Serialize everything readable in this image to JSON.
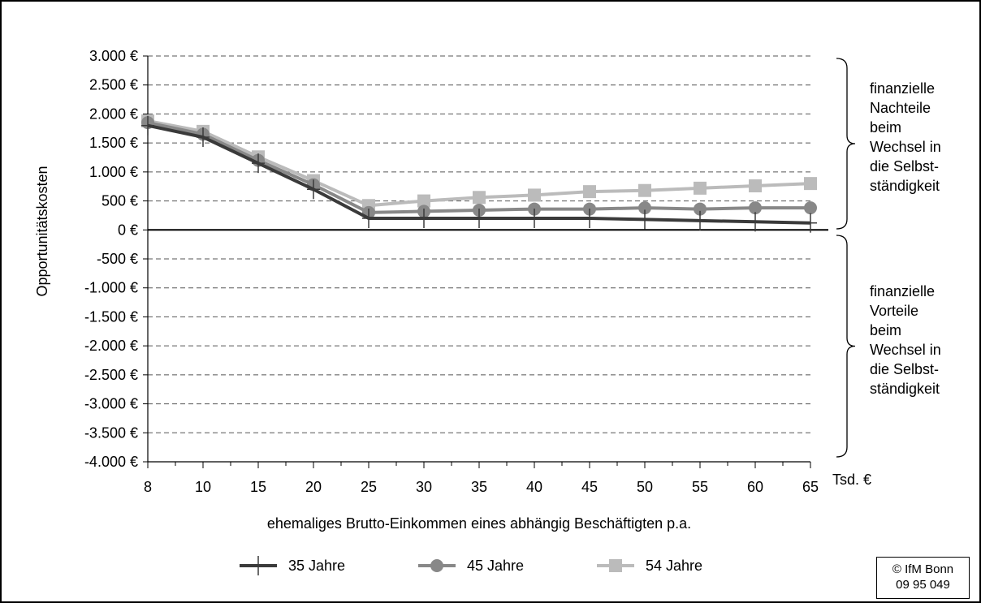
{
  "chart_data": {
    "type": "line",
    "title": "",
    "xlabel": "ehemaliges Brutto-Einkommen eines abhängig Beschäftigten p.a.",
    "x_unit_label": "Tsd. €",
    "ylabel": "Opportunitätskosten",
    "categories": [
      "8",
      "10",
      "15",
      "20",
      "25",
      "30",
      "35",
      "40",
      "45",
      "50",
      "55",
      "60",
      "65"
    ],
    "y_ticks": [
      {
        "value": 3000,
        "label": "3.000 €"
      },
      {
        "value": 2500,
        "label": "2.500 €"
      },
      {
        "value": 2000,
        "label": "2.000 €"
      },
      {
        "value": 1500,
        "label": "1.500 €"
      },
      {
        "value": 1000,
        "label": "1.000 €"
      },
      {
        "value": 500,
        "label": "500 €"
      },
      {
        "value": 0,
        "label": "0 €"
      },
      {
        "value": -500,
        "label": "-500 €"
      },
      {
        "value": -1000,
        "label": "-1.000 €"
      },
      {
        "value": -1500,
        "label": "-1.500 €"
      },
      {
        "value": -2000,
        "label": "-2.000 €"
      },
      {
        "value": -2500,
        "label": "-2.500 €"
      },
      {
        "value": -3000,
        "label": "-3.000 €"
      },
      {
        "value": -3500,
        "label": "-3.500 €"
      },
      {
        "value": -4000,
        "label": "-4.000 €"
      }
    ],
    "ylim": [
      -4000,
      3000
    ],
    "grid": true,
    "legend_position": "bottom",
    "series": [
      {
        "name": "35 Jahre",
        "marker": "plus",
        "color": "#3a3a3a",
        "values": [
          1800,
          1600,
          1150,
          700,
          200,
          200,
          200,
          200,
          200,
          180,
          160,
          140,
          120
        ]
      },
      {
        "name": "45 Jahre",
        "marker": "circle",
        "color": "#888888",
        "values": [
          1850,
          1650,
          1200,
          780,
          300,
          320,
          340,
          360,
          360,
          380,
          360,
          380,
          380
        ]
      },
      {
        "name": "54 Jahre",
        "marker": "square",
        "color": "#bbbbbb",
        "values": [
          1880,
          1700,
          1260,
          850,
          420,
          500,
          560,
          600,
          660,
          680,
          720,
          760,
          800
        ]
      }
    ],
    "annotations": [
      {
        "id": "upper",
        "lines": [
          "finanzielle",
          "Nachteile",
          "beim",
          "Wechsel in",
          "die Selbst-",
          "ständigkeit"
        ]
      },
      {
        "id": "lower",
        "lines": [
          "finanzielle",
          "Vorteile",
          "beim",
          "Wechsel in",
          "die Selbst-",
          "ständigkeit"
        ]
      }
    ]
  },
  "copyright": {
    "line1": "© IfM Bonn",
    "line2": "09 95 049"
  }
}
